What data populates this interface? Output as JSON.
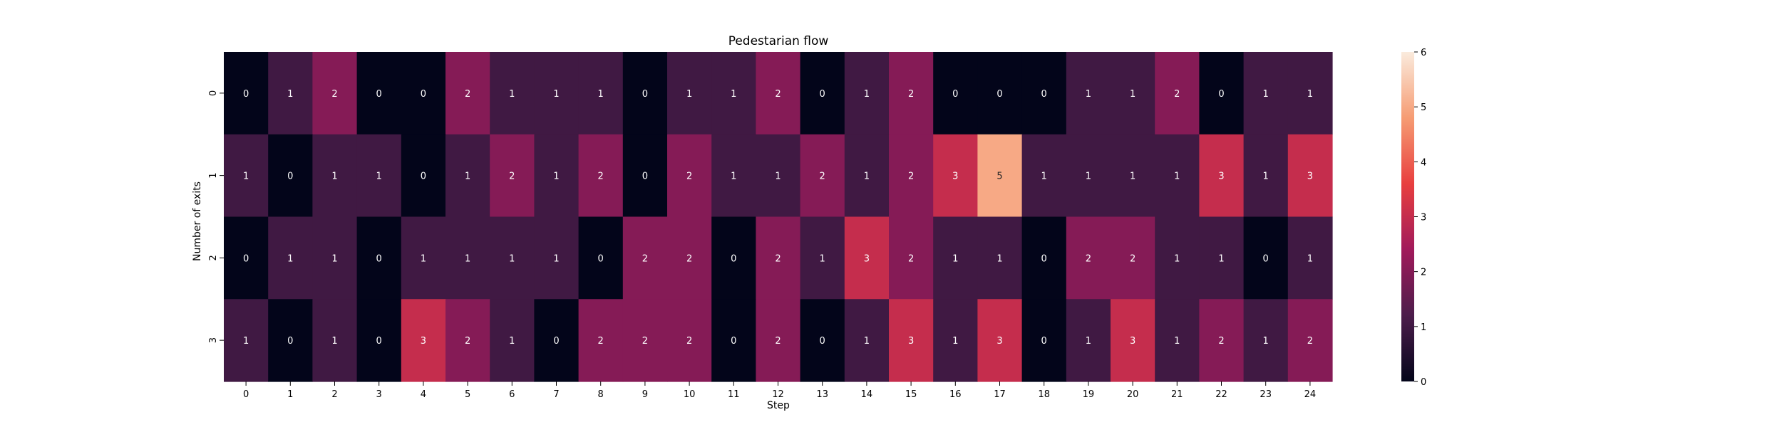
{
  "chart_data": {
    "type": "heatmap",
    "title": "Pedestarian flow",
    "xlabel": "Step",
    "ylabel": "Number of exits",
    "x_categories": [
      "0",
      "1",
      "2",
      "3",
      "4",
      "5",
      "6",
      "7",
      "8",
      "9",
      "10",
      "11",
      "12",
      "13",
      "14",
      "15",
      "16",
      "17",
      "18",
      "19",
      "20",
      "21",
      "22",
      "23",
      "24"
    ],
    "y_categories": [
      "0",
      "1",
      "2",
      "3"
    ],
    "values": [
      [
        0,
        1,
        2,
        0,
        0,
        2,
        1,
        1,
        1,
        0,
        1,
        1,
        2,
        0,
        1,
        2,
        0,
        0,
        0,
        1,
        1,
        2,
        0,
        1,
        1
      ],
      [
        1,
        0,
        1,
        1,
        0,
        1,
        2,
        1,
        2,
        0,
        2,
        1,
        1,
        2,
        1,
        2,
        3,
        5,
        1,
        1,
        1,
        1,
        3,
        1,
        3
      ],
      [
        0,
        1,
        1,
        0,
        1,
        1,
        1,
        1,
        0,
        2,
        2,
        0,
        2,
        1,
        3,
        2,
        1,
        1,
        0,
        2,
        2,
        1,
        1,
        0,
        1
      ],
      [
        1,
        0,
        1,
        0,
        3,
        2,
        1,
        0,
        2,
        2,
        2,
        0,
        2,
        0,
        1,
        3,
        1,
        3,
        0,
        1,
        3,
        1,
        2,
        1,
        2
      ]
    ],
    "annotated": true,
    "colorbar": {
      "range": [
        0,
        6
      ],
      "ticks": [
        "0",
        "1",
        "2",
        "3",
        "4",
        "5",
        "6"
      ],
      "colormap": "rocket",
      "stops": [
        "#03051a",
        "#4c1d4b",
        "#a11a5b",
        "#e83f3f",
        "#f69c73",
        "#faebdd"
      ]
    }
  }
}
